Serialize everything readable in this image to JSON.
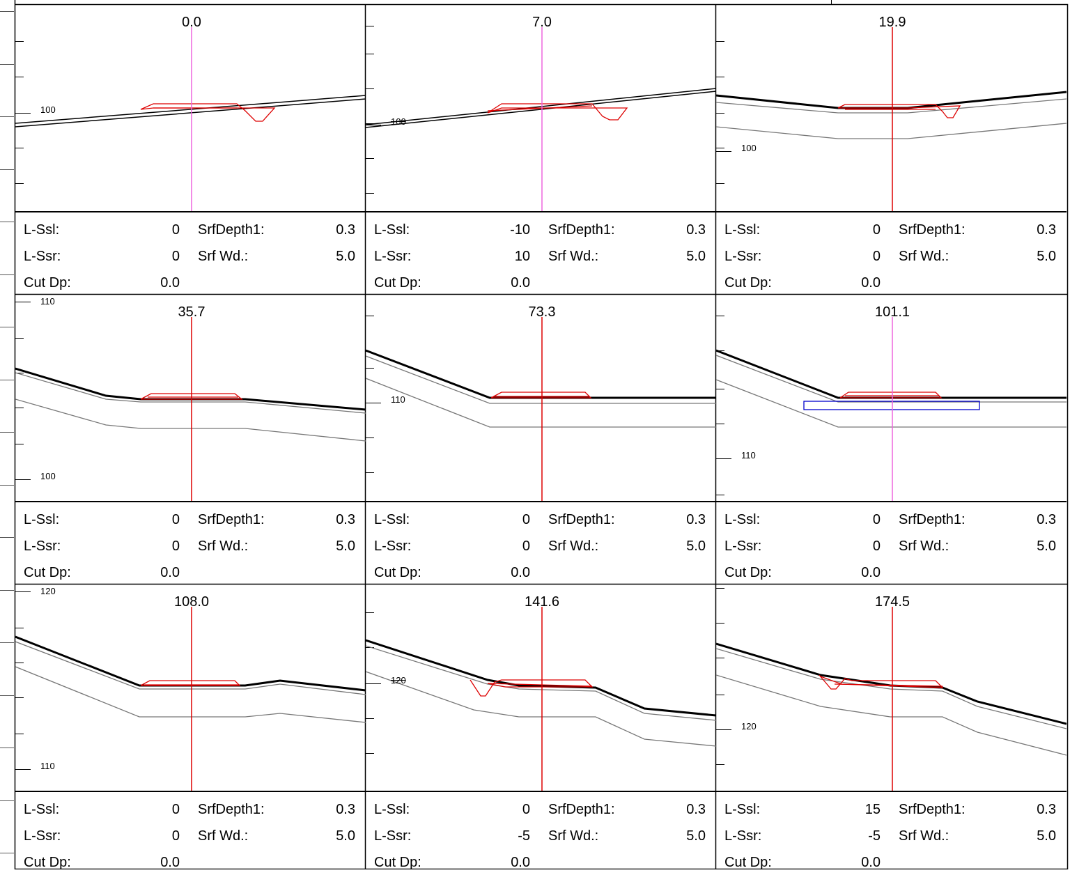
{
  "labels": {
    "lssl": "L-Ssl:",
    "lssr": "L-Ssr:",
    "cutdp": "Cut Dp:",
    "srfdepth": "SrfDepth1:",
    "srfwd": "Srf Wd.:"
  },
  "colors": {
    "ground": "#000000",
    "layer": "#777777",
    "road": "#dd0000",
    "axis_active": "#dd0000",
    "axis_selected": "#ee66dd",
    "structure": "#0000cc"
  },
  "sections": [
    {
      "station": "0.0",
      "elev_label": "100",
      "lssl": "0",
      "lssr": "0",
      "cutdp": "0.0",
      "srfdepth": "0.3",
      "srfwd": "5.0",
      "axis": "selected"
    },
    {
      "station": "7.0",
      "elev_label": "100",
      "lssl": "-10",
      "lssr": "10",
      "cutdp": "0.0",
      "srfdepth": "0.3",
      "srfwd": "5.0",
      "axis": "selected"
    },
    {
      "station": "19.9",
      "elev_label": "100",
      "lssl": "0",
      "lssr": "0",
      "cutdp": "0.0",
      "srfdepth": "0.3",
      "srfwd": "5.0",
      "axis": "active"
    },
    {
      "station": "35.7",
      "elev_label": "100",
      "elev_label_top": "110",
      "lssl": "0",
      "lssr": "0",
      "cutdp": "0.0",
      "srfdepth": "0.3",
      "srfwd": "5.0",
      "axis": "active"
    },
    {
      "station": "73.3",
      "elev_label": "110",
      "lssl": "0",
      "lssr": "0",
      "cutdp": "0.0",
      "srfdepth": "0.3",
      "srfwd": "5.0",
      "axis": "active"
    },
    {
      "station": "101.1",
      "elev_label": "110",
      "lssl": "0",
      "lssr": "0",
      "cutdp": "0.0",
      "srfdepth": "0.3",
      "srfwd": "5.0",
      "axis": "selected"
    },
    {
      "station": "108.0",
      "elev_label": "110",
      "elev_label_top": "120",
      "lssl": "0",
      "lssr": "0",
      "cutdp": "0.0",
      "srfdepth": "0.3",
      "srfwd": "5.0",
      "axis": "active"
    },
    {
      "station": "141.6",
      "elev_label": "120",
      "lssl": "0",
      "lssr": "-5",
      "cutdp": "0.0",
      "srfdepth": "0.3",
      "srfwd": "5.0",
      "axis": "active"
    },
    {
      "station": "174.5",
      "elev_label": "120",
      "lssl": "15",
      "lssr": "-5",
      "cutdp": "0.0",
      "srfdepth": "0.3",
      "srfwd": "5.0",
      "axis": "active"
    }
  ]
}
